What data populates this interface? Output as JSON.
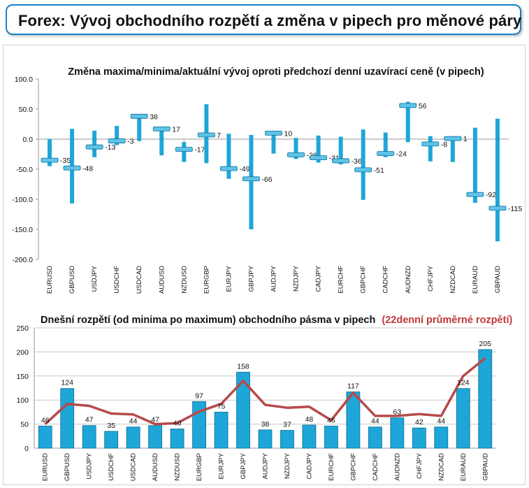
{
  "page_title": "Forex: Vývoj obchodního rozpětí a změna v pipech pro měnové páry",
  "colors": {
    "bar": "#1ea6d8",
    "bar_edge": "#0b6f9a",
    "line": "#b64a4a",
    "title_border": "#1a7fc6",
    "highlight_text": "#c0393b"
  },
  "chart_data": [
    {
      "type": "bar",
      "title": "Změna maxima/minima/aktuální vývoj oproti předchozí denní uzavírací ceně (v pipech)",
      "categories": [
        "EURUSD",
        "GBPUSD",
        "USDJPY",
        "USDCHF",
        "USDCAD",
        "AUDUSD",
        "NZDUSD",
        "EURGBP",
        "EURJPY",
        "GBPJPY",
        "AUDJPY",
        "NZDJPY",
        "CADJPY",
        "EURCHF",
        "GBPCHF",
        "CADCHF",
        "AUDNZD",
        "CHFJPY",
        "NZDCAD",
        "EURAUD",
        "GBPAUD"
      ],
      "high": [
        0,
        17,
        14,
        22,
        40,
        20,
        -5,
        58,
        9,
        7,
        13,
        2,
        6,
        4,
        16,
        11,
        62,
        5,
        3,
        19,
        34
      ],
      "low": [
        -45,
        -107,
        -30,
        -10,
        -3,
        -27,
        -38,
        -40,
        -66,
        -150,
        -24,
        -33,
        -39,
        -42,
        -101,
        -30,
        -5,
        -37,
        -38,
        -106,
        -170
      ],
      "values": [
        -35,
        -48,
        -13,
        -3,
        38,
        17,
        -17,
        7,
        -49,
        -66,
        10,
        -26,
        -31,
        -36,
        -51,
        -24,
        56,
        -8,
        1,
        -92,
        -115
      ],
      "value_labels": [
        "-35",
        "-48",
        "-13",
        "-3",
        "38",
        "17",
        "-17",
        "7",
        "-49",
        "-66",
        "10",
        "-26",
        "-31",
        "-36",
        "-51",
        "-24",
        "56",
        "-8",
        "1",
        "-92",
        "-115"
      ],
      "ylim": [
        -200,
        100
      ],
      "yticks": [
        "100.0",
        "50.0",
        "0.0",
        "-50.0",
        "-100.0",
        "-150.0",
        "-200.0"
      ],
      "grid": false
    },
    {
      "type": "bar",
      "title": "Dnešní rozpětí (od minima po maximum) obchodního pásma v pipech",
      "title_highlight": "(22denní průměrné rozpětí)",
      "categories": [
        "EURUSD",
        "GBPUSD",
        "USDJPY",
        "USDCHF",
        "USDCAD",
        "AUDUSD",
        "NZDUSD",
        "EURGBP",
        "EURJPY",
        "GBPJPY",
        "AUDJPY",
        "NZDJPY",
        "CADJPY",
        "EURCHF",
        "GBPCHF",
        "CADCHF",
        "AUDNZD",
        "CHFJPY",
        "NZDCAD",
        "EURAUD",
        "GBPAUD"
      ],
      "values": [
        46,
        124,
        47,
        35,
        44,
        47,
        40,
        97,
        75,
        158,
        38,
        37,
        48,
        46,
        117,
        44,
        63,
        42,
        44,
        124,
        205
      ],
      "value_labels": [
        "46",
        "124",
        "47",
        "35",
        "44",
        "47",
        "40",
        "97",
        "75",
        "158",
        "38",
        "37",
        "48",
        "46",
        "117",
        "44",
        "63",
        "42",
        "44",
        "124",
        "205"
      ],
      "average": [
        50,
        92,
        88,
        72,
        70,
        50,
        52,
        76,
        92,
        140,
        90,
        84,
        86,
        58,
        115,
        67,
        67,
        71,
        67,
        150,
        187
      ],
      "ylim": [
        0,
        250
      ],
      "yticks": [
        "250",
        "200",
        "150",
        "100",
        "50",
        "0"
      ],
      "grid": true
    }
  ]
}
